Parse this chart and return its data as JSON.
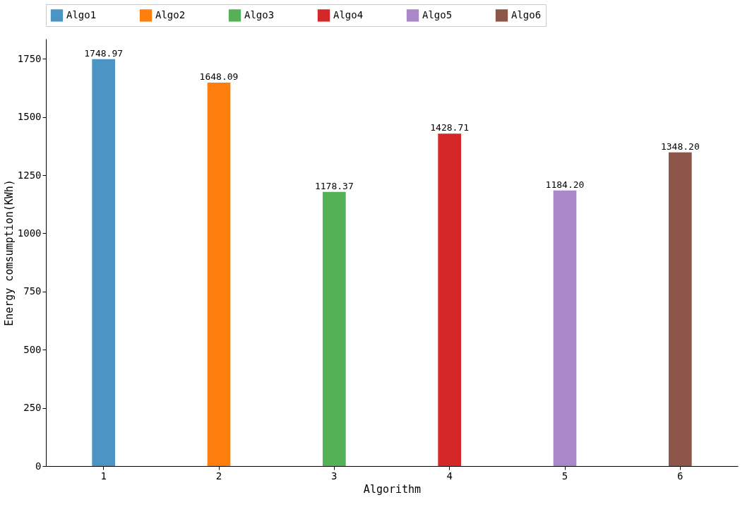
{
  "chart_data": {
    "type": "bar",
    "xlabel": "Algorithm",
    "ylabel": "Energy comsumption(KWh)",
    "categories": [
      "1",
      "2",
      "3",
      "4",
      "5",
      "6"
    ],
    "series": [
      {
        "name": "Algo1",
        "color": "#4c94c4",
        "values": [
          1748.97,
          null,
          null,
          null,
          null,
          null
        ],
        "value_labels": [
          "1748.97",
          null,
          null,
          null,
          null,
          null
        ]
      },
      {
        "name": "Algo2",
        "color": "#ff7f0e",
        "values": [
          null,
          1648.09,
          null,
          null,
          null,
          null
        ],
        "value_labels": [
          null,
          "1648.09",
          null,
          null,
          null,
          null
        ]
      },
      {
        "name": "Algo3",
        "color": "#55b155",
        "values": [
          null,
          null,
          1178.37,
          null,
          null,
          null
        ],
        "value_labels": [
          null,
          null,
          "1178.37",
          null,
          null,
          null
        ]
      },
      {
        "name": "Algo4",
        "color": "#d62728",
        "values": [
          null,
          null,
          null,
          1428.71,
          null,
          null
        ],
        "value_labels": [
          null,
          null,
          null,
          "1428.71",
          null,
          null
        ]
      },
      {
        "name": "Algo5",
        "color": "#a987c9",
        "values": [
          null,
          null,
          null,
          null,
          1184.2,
          null
        ],
        "value_labels": [
          null,
          null,
          null,
          null,
          "1184.20",
          null
        ]
      },
      {
        "name": "Algo6",
        "color": "#8c564b",
        "values": [
          null,
          null,
          null,
          null,
          null,
          1348.2
        ],
        "value_labels": [
          null,
          null,
          null,
          null,
          null,
          "1348.20"
        ]
      }
    ],
    "ylim": [
      0,
      1836
    ],
    "yticks": [
      0,
      250,
      500,
      750,
      1000,
      1250,
      1500,
      1750
    ],
    "grid": false,
    "legend": "top"
  }
}
